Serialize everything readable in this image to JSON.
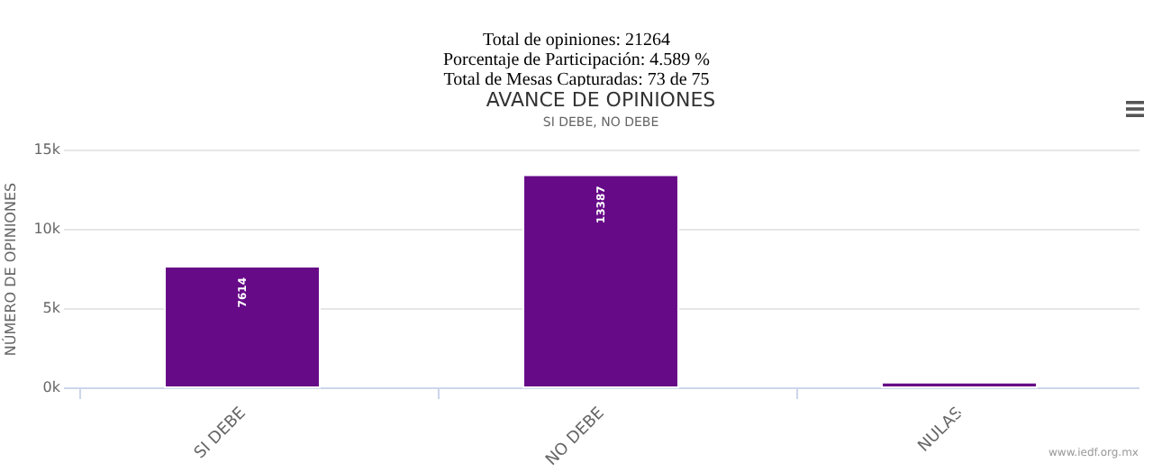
{
  "chart_data": {
    "type": "bar",
    "title": "AVANCE DE OPINIONES",
    "subtitle": "SI DEBE, NO DEBE",
    "ylabel": "NÚMERO DE OPINIONES",
    "annotations": [
      "Total de opiniones: 21264",
      "Porcentaje de Participación: 4.589 %",
      "Total de Mesas Capturadas: 73 de 75",
      "www.iedf.org.mx"
    ],
    "categories": [
      "SI DEBE",
      "NO DEBE",
      "NULAS"
    ],
    "values": [
      7614,
      13387,
      300
    ],
    "value_labels": [
      "7614",
      "13387",
      null
    ],
    "color": "#660a87",
    "ylim": [
      0,
      15000
    ],
    "yticks": [
      {
        "value": 0,
        "label": "0k"
      },
      {
        "value": 5000,
        "label": "5k"
      },
      {
        "value": 10000,
        "label": "10k"
      },
      {
        "value": 15000,
        "label": "15k"
      }
    ],
    "grid": "y"
  }
}
